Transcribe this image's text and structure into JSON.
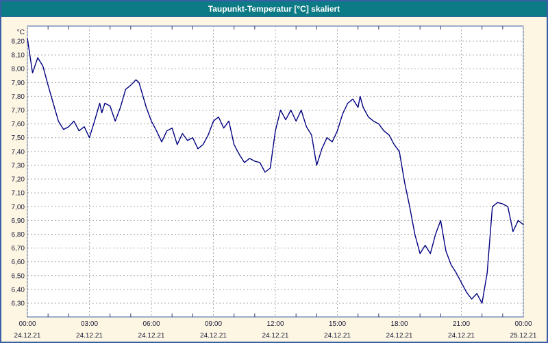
{
  "title_bar": {
    "title": "Taupunkt-Temperatur [°C] skaliert"
  },
  "colors": {
    "page_background": "#fdf6e3",
    "outer_border": "#3b5ea6",
    "title_background": "#0d7b85",
    "title_text": "#ffffff",
    "plot_background": "#ffffff",
    "plot_border": "#3b5ea6",
    "grid": "#a8a8a8",
    "line": "#000080",
    "tick_text": "#1b1b3a",
    "minor_tick": "#333366"
  },
  "chart_data": {
    "type": "line",
    "title": "Taupunkt-Temperatur [°C] skaliert",
    "y_unit_label": "°C",
    "ylabel": "",
    "xlabel": "",
    "ylim": [
      6.3,
      8.2
    ],
    "y_tick_step": 0.1,
    "grid": true,
    "legend": "none",
    "y_tick_labels": [
      "8,20",
      "8,10",
      "8,00",
      "7,90",
      "7,80",
      "7,70",
      "7,60",
      "7,50",
      "7,40",
      "7,30",
      "7,20",
      "7,10",
      "7,00",
      "6,90",
      "6,80",
      "6,70",
      "6,60",
      "6,50",
      "6,40",
      "6,30"
    ],
    "y_tick_values": [
      8.2,
      8.1,
      8.0,
      7.9,
      7.8,
      7.7,
      7.6,
      7.5,
      7.4,
      7.3,
      7.2,
      7.1,
      7.0,
      6.9,
      6.8,
      6.7,
      6.6,
      6.5,
      6.4,
      6.3
    ],
    "x_tick_hours": [
      0,
      3,
      6,
      9,
      12,
      15,
      18,
      21,
      24
    ],
    "x_tick_labels": [
      "00:00",
      "03:00",
      "06:00",
      "09:00",
      "12:00",
      "15:00",
      "18:00",
      "21:00",
      "00:00"
    ],
    "x_date_labels": [
      "24.12.21",
      "24.12.21",
      "24.12.21",
      "24.12.21",
      "24.12.21",
      "24.12.21",
      "24.12.21",
      "24.12.21",
      "25.12.21"
    ],
    "series_name": "Taupunkt-Temperatur",
    "points": [
      [
        0,
        8.22
      ],
      [
        0.25,
        7.97
      ],
      [
        0.5,
        8.08
      ],
      [
        0.75,
        8.02
      ],
      [
        1,
        7.88
      ],
      [
        1.25,
        7.75
      ],
      [
        1.5,
        7.62
      ],
      [
        1.75,
        7.56
      ],
      [
        2,
        7.58
      ],
      [
        2.25,
        7.62
      ],
      [
        2.5,
        7.55
      ],
      [
        2.75,
        7.58
      ],
      [
        3,
        7.5
      ],
      [
        3.25,
        7.62
      ],
      [
        3.5,
        7.75
      ],
      [
        3.6,
        7.68
      ],
      [
        3.75,
        7.75
      ],
      [
        4,
        7.73
      ],
      [
        4.25,
        7.62
      ],
      [
        4.5,
        7.72
      ],
      [
        4.75,
        7.85
      ],
      [
        5,
        7.88
      ],
      [
        5.25,
        7.92
      ],
      [
        5.4,
        7.9
      ],
      [
        5.5,
        7.85
      ],
      [
        5.75,
        7.72
      ],
      [
        6,
        7.62
      ],
      [
        6.25,
        7.55
      ],
      [
        6.5,
        7.47
      ],
      [
        6.75,
        7.55
      ],
      [
        7,
        7.57
      ],
      [
        7.25,
        7.45
      ],
      [
        7.5,
        7.53
      ],
      [
        7.75,
        7.48
      ],
      [
        8,
        7.5
      ],
      [
        8.25,
        7.42
      ],
      [
        8.5,
        7.45
      ],
      [
        8.75,
        7.52
      ],
      [
        9,
        7.62
      ],
      [
        9.25,
        7.65
      ],
      [
        9.5,
        7.57
      ],
      [
        9.75,
        7.62
      ],
      [
        10,
        7.45
      ],
      [
        10.25,
        7.38
      ],
      [
        10.5,
        7.32
      ],
      [
        10.75,
        7.35
      ],
      [
        11,
        7.33
      ],
      [
        11.25,
        7.32
      ],
      [
        11.5,
        7.25
      ],
      [
        11.75,
        7.28
      ],
      [
        12,
        7.55
      ],
      [
        12.25,
        7.7
      ],
      [
        12.5,
        7.63
      ],
      [
        12.75,
        7.7
      ],
      [
        13,
        7.62
      ],
      [
        13.25,
        7.7
      ],
      [
        13.5,
        7.58
      ],
      [
        13.75,
        7.52
      ],
      [
        14,
        7.3
      ],
      [
        14.25,
        7.42
      ],
      [
        14.5,
        7.5
      ],
      [
        14.75,
        7.47
      ],
      [
        15,
        7.55
      ],
      [
        15.25,
        7.67
      ],
      [
        15.5,
        7.75
      ],
      [
        15.75,
        7.78
      ],
      [
        16,
        7.72
      ],
      [
        16.1,
        7.8
      ],
      [
        16.25,
        7.72
      ],
      [
        16.5,
        7.65
      ],
      [
        16.75,
        7.62
      ],
      [
        17,
        7.6
      ],
      [
        17.25,
        7.55
      ],
      [
        17.5,
        7.52
      ],
      [
        17.75,
        7.45
      ],
      [
        18,
        7.4
      ],
      [
        18.25,
        7.18
      ],
      [
        18.5,
        7.0
      ],
      [
        18.75,
        6.8
      ],
      [
        19,
        6.66
      ],
      [
        19.25,
        6.72
      ],
      [
        19.5,
        6.66
      ],
      [
        19.75,
        6.8
      ],
      [
        20,
        6.9
      ],
      [
        20.25,
        6.68
      ],
      [
        20.5,
        6.58
      ],
      [
        20.75,
        6.52
      ],
      [
        21,
        6.45
      ],
      [
        21.25,
        6.38
      ],
      [
        21.5,
        6.33
      ],
      [
        21.75,
        6.37
      ],
      [
        22,
        6.3
      ],
      [
        22.25,
        6.52
      ],
      [
        22.5,
        7.0
      ],
      [
        22.75,
        7.03
      ],
      [
        23,
        7.02
      ],
      [
        23.25,
        7.0
      ],
      [
        23.5,
        6.82
      ],
      [
        23.75,
        6.9
      ],
      [
        24,
        6.87
      ]
    ]
  }
}
